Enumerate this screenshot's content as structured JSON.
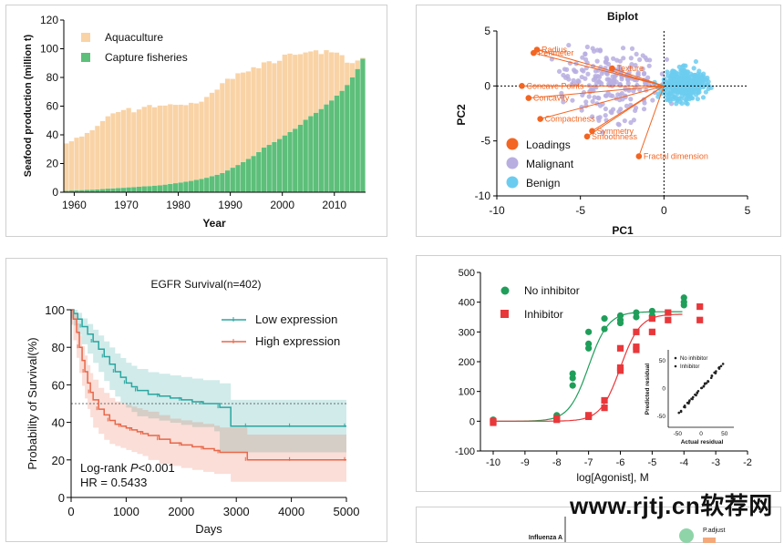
{
  "watermark": "www.rjtj.cn软荐网",
  "chart_data": [
    {
      "type": "bar",
      "stacked": true,
      "xlabel": "Year",
      "ylabel": "Seafood production (million t)",
      "ylim": [
        0,
        120
      ],
      "yticks": [
        0,
        20,
        40,
        60,
        80,
        100,
        120
      ],
      "xticks": [
        1960,
        1970,
        1980,
        1990,
        2000,
        2010
      ],
      "legend_position": "top-left",
      "categories": [
        1958,
        1959,
        1960,
        1961,
        1962,
        1963,
        1964,
        1965,
        1966,
        1967,
        1968,
        1969,
        1970,
        1971,
        1972,
        1973,
        1974,
        1975,
        1976,
        1977,
        1978,
        1979,
        1980,
        1981,
        1982,
        1983,
        1984,
        1985,
        1986,
        1987,
        1988,
        1989,
        1990,
        1991,
        1992,
        1993,
        1994,
        1995,
        1996,
        1997,
        1998,
        1999,
        2000,
        2001,
        2002,
        2003,
        2004,
        2005,
        2006,
        2007,
        2008,
        2009,
        2010,
        2011,
        2012,
        2013,
        2014,
        2015
      ],
      "series": [
        {
          "name": "Aquaculture",
          "color": "#f9d3a6",
          "values": [
            33.0,
            34.3,
            36.6,
            37.3,
            39.6,
            41.4,
            44.2,
            47.4,
            50.4,
            52.3,
            53.0,
            54.2,
            55.3,
            52.1,
            53.8,
            55.4,
            56.5,
            54.6,
            55.5,
            55.1,
            55.5,
            54.6,
            54.2,
            53.4,
            54.4,
            53.3,
            53.8,
            56.3,
            58.1,
            59.3,
            62.6,
            63.9,
            61.9,
            63.9,
            62.4,
            61.0,
            61.8,
            58.4,
            59.4,
            58.3,
            54.9,
            54.5,
            56.3,
            54.7,
            51.5,
            49.1,
            46.9,
            45.1,
            43.5,
            38.3,
            37.8,
            33.5,
            29.9,
            24.8,
            15.5,
            10.0,
            5.9,
            0.6
          ]
        },
        {
          "name": "Capture fisheries",
          "color": "#5dbf7a",
          "values": [
            1,
            1.2,
            1.4,
            1.5,
            1.7,
            1.8,
            2.0,
            2.2,
            2.5,
            2.7,
            2.9,
            3.1,
            3.4,
            3.6,
            3.9,
            4.1,
            4.3,
            4.6,
            4.9,
            5.3,
            5.8,
            6.3,
            6.8,
            7.3,
            7.9,
            8.6,
            9.3,
            10.1,
            11.2,
            12.2,
            13.4,
            15.2,
            17.1,
            19.0,
            21.0,
            23.2,
            25.3,
            28.0,
            31.1,
            33.0,
            35.0,
            37.1,
            39.6,
            41.9,
            44.3,
            47.1,
            50.5,
            53.0,
            55.4,
            58.0,
            61.2,
            64.0,
            67.4,
            70.7,
            74.8,
            80.0,
            85.9,
            93.0
          ]
        }
      ]
    },
    {
      "type": "scatter",
      "title": "Biplot",
      "xlabel": "PC1",
      "ylabel": "PC2",
      "xlim": [
        -10,
        5
      ],
      "ylim": [
        -10,
        5
      ],
      "xticks": [
        -10,
        -5,
        0,
        5
      ],
      "yticks": [
        -10,
        -5,
        0,
        5
      ],
      "legend_position": "bottom-left",
      "legend": [
        {
          "name": "Loadings",
          "color": "#f26522"
        },
        {
          "name": "Malignant",
          "color": "#b9aee0"
        },
        {
          "name": "Benign",
          "color": "#6cccf0"
        }
      ],
      "loadings": [
        {
          "label": "Radius",
          "x": -7.6,
          "y": 3.3
        },
        {
          "label": "Perimeter",
          "x": -7.8,
          "y": 3.0
        },
        {
          "label": "Texture",
          "x": -3.1,
          "y": 1.6
        },
        {
          "label": "Concave Points",
          "x": -8.5,
          "y": 0.0
        },
        {
          "label": "Concavity",
          "x": -8.1,
          "y": -1.1
        },
        {
          "label": "Compactness",
          "x": -7.4,
          "y": -3.0
        },
        {
          "label": "Symmetry",
          "x": -4.3,
          "y": -4.1
        },
        {
          "label": "Smoothness",
          "x": -4.6,
          "y": -4.6
        },
        {
          "label": "Fractal dimension",
          "x": -1.5,
          "y": -6.4
        }
      ]
    },
    {
      "type": "line",
      "subtype": "kaplan-meier",
      "title": "EGFR Survival(n=402)",
      "xlabel": "Days",
      "ylabel": "Probability of Survival(%)",
      "xlim": [
        0,
        5000
      ],
      "ylim": [
        0,
        100
      ],
      "xticks": [
        0,
        1000,
        2000,
        3000,
        4000,
        5000
      ],
      "yticks": [
        0,
        20,
        40,
        60,
        80,
        100
      ],
      "reference_line": 50,
      "legend_position": "top-right",
      "annotation": {
        "logrank_prefix": "Log-rank ",
        "logrank_p": "P",
        "logrank_value": "<0.001",
        "hr": "HR = 0.5433"
      },
      "series": [
        {
          "name": "Low expression",
          "color": "#2aa6a0",
          "x": [
            0,
            50,
            120,
            200,
            300,
            400,
            500,
            600,
            700,
            800,
            900,
            1000,
            1100,
            1200,
            1400,
            1600,
            1800,
            2000,
            2200,
            2400,
            2600,
            2700,
            2900,
            3200,
            3600,
            4000,
            4500,
            5000
          ],
          "y": [
            100,
            98,
            95,
            91,
            87,
            83,
            79,
            75,
            71,
            67,
            64,
            61,
            59,
            57,
            55,
            54,
            53,
            52,
            51,
            50,
            50,
            48,
            38,
            38,
            38,
            38,
            38,
            38
          ]
        },
        {
          "name": "High expression",
          "color": "#e8674a",
          "x": [
            0,
            40,
            100,
            150,
            200,
            250,
            300,
            350,
            400,
            500,
            600,
            700,
            800,
            900,
            1000,
            1100,
            1200,
            1300,
            1400,
            1600,
            1800,
            2000,
            2200,
            2400,
            2600,
            2700,
            2900,
            3200,
            3600,
            4000,
            4500,
            5000
          ],
          "y": [
            100,
            95,
            88,
            80,
            73,
            67,
            61,
            56,
            52,
            47,
            44,
            41,
            39,
            38,
            37,
            36,
            35,
            34,
            33,
            31,
            29,
            28,
            27,
            26,
            25,
            24,
            24,
            20,
            20,
            20,
            20,
            20
          ]
        }
      ]
    },
    {
      "type": "scatter",
      "subtype": "dose-response",
      "xlabel": "log[Agonist], M",
      "ylim": [
        -100,
        500
      ],
      "xlim": [
        -10,
        -2
      ],
      "xticks": [
        -10,
        -9,
        -8,
        -7,
        -6,
        -5,
        -4,
        -3,
        -2
      ],
      "yticks": [
        -100,
        0,
        100,
        200,
        300,
        400,
        500
      ],
      "legend_position": "top-left",
      "series": [
        {
          "name": "No inhibitor",
          "color": "#1f9e5a",
          "x": [
            -10,
            -10,
            -8,
            -8,
            -7.5,
            -7.5,
            -7.5,
            -7,
            -7,
            -7,
            -6.5,
            -6.5,
            -6,
            -6,
            -6,
            -5.5,
            -5.5,
            -5,
            -5,
            -4,
            -4,
            -4
          ],
          "y": [
            5,
            0,
            20,
            10,
            160,
            145,
            120,
            300,
            260,
            245,
            345,
            310,
            355,
            340,
            330,
            365,
            350,
            370,
            355,
            400,
            415,
            390
          ]
        },
        {
          "name": "Inhibitor",
          "color": "#e8383b",
          "x": [
            -10,
            -10,
            -8,
            -8,
            -7,
            -7,
            -6.5,
            -6.5,
            -6,
            -6,
            -6,
            -5.5,
            -5.5,
            -5.5,
            -5,
            -5,
            -4.5,
            -4.5,
            -3.5,
            -3.5
          ],
          "y": [
            0,
            -5,
            10,
            5,
            20,
            15,
            70,
            45,
            245,
            180,
            170,
            300,
            250,
            240,
            345,
            300,
            365,
            340,
            385,
            340
          ]
        }
      ],
      "inset": {
        "xlabel": "Actual residual",
        "ylabel": "Predicted residual",
        "xticks": [
          -50,
          0,
          50
        ],
        "yticks": [
          -50,
          0,
          50
        ],
        "legend": [
          "No inhibitor",
          "Inhibitor"
        ]
      }
    },
    {
      "type": "scatter",
      "partial": true,
      "categories": [
        "Influenza A"
      ],
      "legend_title": "P.adjust"
    }
  ]
}
